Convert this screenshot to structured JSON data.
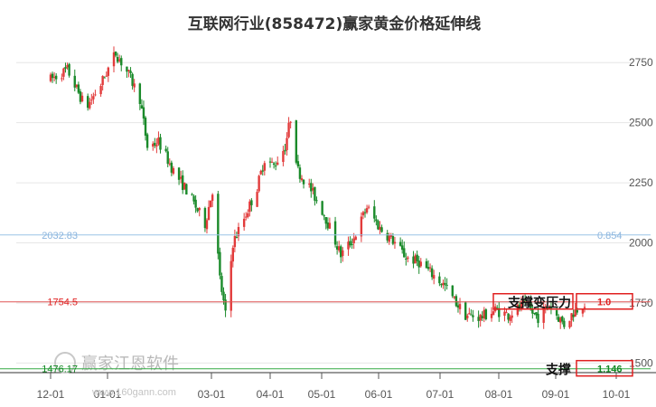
{
  "chart_data": {
    "type": "candlestick",
    "title": "互联网行业(858472)赢家黄金价格延伸线",
    "x_ticks": [
      "12-01",
      "01-01",
      "03-01",
      "04-01",
      "05-01",
      "06-01",
      "07-01",
      "08-01",
      "09-01",
      "10-01"
    ],
    "y_ticks": [
      "2750",
      "2500",
      "2250",
      "2000",
      "1750",
      "1500"
    ],
    "ylim": [
      1460,
      2860
    ],
    "grid": true,
    "levels": [
      {
        "price": 2032.83,
        "price_label": "2032.83",
        "ratio_label": "0.854",
        "color": "#9cc3e6",
        "label_color": "#8bb5de"
      },
      {
        "price": 1754.5,
        "price_label": "1754.5",
        "ratio_label": "1.0",
        "color": "#e05555",
        "label_color": "#e02020",
        "annotation": "支撑变压力"
      },
      {
        "price": 1476.17,
        "price_label": "1476.17",
        "ratio_label": "1.146",
        "color": "#33aa44",
        "label_color": "#118822",
        "annotation": "支撑"
      }
    ],
    "trend": [
      [
        "2020-12-01",
        2680
      ],
      [
        "2020-12-10",
        2720
      ],
      [
        "2020-12-20",
        2560
      ],
      [
        "2020-12-28",
        2660
      ],
      [
        "2021-01-05",
        2790
      ],
      [
        "2021-01-12",
        2700
      ],
      [
        "2021-01-18",
        2600
      ],
      [
        "2021-01-22",
        2400
      ],
      [
        "2021-01-28",
        2420
      ],
      [
        "2021-02-05",
        2300
      ],
      [
        "2021-02-12",
        2220
      ],
      [
        "2021-02-22",
        2080
      ],
      [
        "2021-02-26",
        2220
      ],
      [
        "2021-03-02",
        1850
      ],
      [
        "2021-03-05",
        1700
      ],
      [
        "2021-03-09",
        2000
      ],
      [
        "2021-03-16",
        2120
      ],
      [
        "2021-03-22",
        2230
      ],
      [
        "2021-03-26",
        2350
      ],
      [
        "2021-03-31",
        2320
      ],
      [
        "2021-04-06",
        2400
      ],
      [
        "2021-04-09",
        2520
      ],
      [
        "2021-04-13",
        2300
      ],
      [
        "2021-04-20",
        2220
      ],
      [
        "2021-04-27",
        2120
      ],
      [
        "2021-05-06",
        1950
      ],
      [
        "2021-05-13",
        2020
      ],
      [
        "2021-05-20",
        2150
      ],
      [
        "2021-05-27",
        2060
      ],
      [
        "2021-06-03",
        2010
      ],
      [
        "2021-06-10",
        1940
      ],
      [
        "2021-06-17",
        1920
      ],
      [
        "2021-06-24",
        1870
      ],
      [
        "2021-07-01",
        1820
      ],
      [
        "2021-07-06",
        1760
      ],
      [
        "2021-07-12",
        1700
      ],
      [
        "2021-07-20",
        1690
      ],
      [
        "2021-07-28",
        1720
      ],
      [
        "2021-08-04",
        1700
      ],
      [
        "2021-08-12",
        1740
      ],
      [
        "2021-08-20",
        1690
      ],
      [
        "2021-08-26",
        1740
      ],
      [
        "2021-09-03",
        1660
      ],
      [
        "2021-09-09",
        1720
      ],
      [
        "2021-09-14",
        1750
      ]
    ]
  },
  "watermark": {
    "brand": "赢家江恩软件",
    "url": "www.160gann.com"
  }
}
